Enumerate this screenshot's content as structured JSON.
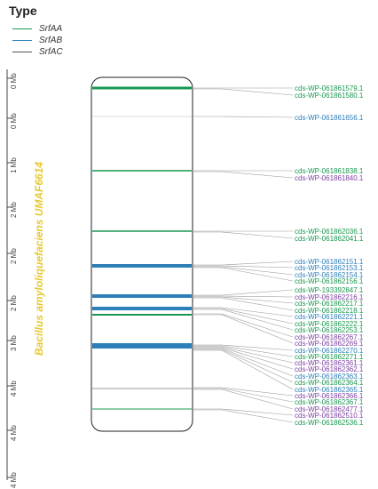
{
  "legend": {
    "title": "Type",
    "items": [
      {
        "label": "SrfAA",
        "color": "#1a9850"
      },
      {
        "label": "SrfAB",
        "color": "#2c7fb8"
      },
      {
        "label": "SrfAC",
        "color": "#555555"
      }
    ]
  },
  "organism": "Bacillus amyloliquefaciens UMAF6614",
  "axis_ticks": [
    "0 Mb",
    "0 Mb",
    "1 Mb",
    "2 Mb",
    "2 Mb",
    "2 Mb",
    "3 Mb",
    "4 Mb",
    "4 Mb",
    "4 Mb"
  ],
  "colors": {
    "SrfAA": "#1a9850",
    "SrfAB": "#2c7fb8",
    "SrfAC": "#555555",
    "purple": "#7b3fa0",
    "organism": "#e6c832"
  },
  "genes": [
    {
      "label": "cds-WP-061861579.1",
      "color": "#1a9850"
    },
    {
      "label": "cds-WP-061861580.1",
      "color": "#1a9850"
    },
    {
      "label": "cds-WP-061861656.1",
      "color": "#2c7fb8"
    },
    {
      "label": "cds-WP-061861838.1",
      "color": "#1a9850"
    },
    {
      "label": "cds-WP-061861840.1",
      "color": "#7b3fa0"
    },
    {
      "label": "cds-WP-061862036.1",
      "color": "#1a9850"
    },
    {
      "label": "cds-WP-061862041.1",
      "color": "#1a9850"
    },
    {
      "label": "cds-WP-061862151.1",
      "color": "#2c7fb8"
    },
    {
      "label": "cds-WP-061862153.1",
      "color": "#2c7fb8"
    },
    {
      "label": "cds-WP-061862154.1",
      "color": "#2c7fb8"
    },
    {
      "label": "cds-WP-061862156.1",
      "color": "#1a9850"
    },
    {
      "label": "cds-WP-193392847.1",
      "color": "#1a9850"
    },
    {
      "label": "cds-WP-061862216.1",
      "color": "#7b3fa0"
    },
    {
      "label": "cds-WP-061862217.1",
      "color": "#1a9850"
    },
    {
      "label": "cds-WP-061862218.1",
      "color": "#1a9850"
    },
    {
      "label": "cds-WP-061862221.1",
      "color": "#2c7fb8"
    },
    {
      "label": "cds-WP-061862222.1",
      "color": "#1a9850"
    },
    {
      "label": "cds-WP-061862253.1",
      "color": "#1a9850"
    },
    {
      "label": "cds-WP-061862267.1",
      "color": "#7b3fa0"
    },
    {
      "label": "cds-WP-061862269.1",
      "color": "#7b3fa0"
    },
    {
      "label": "cds-WP-061862270.1",
      "color": "#2c7fb8"
    },
    {
      "label": "cds-WP-061862271.1",
      "color": "#1a9850"
    },
    {
      "label": "cds-WP-061862361.1",
      "color": "#7b3fa0"
    },
    {
      "label": "cds-WP-061862362.1",
      "color": "#7b3fa0"
    },
    {
      "label": "cds-WP-061862363.1",
      "color": "#2c7fb8"
    },
    {
      "label": "cds-WP-061862364.1",
      "color": "#1a9850"
    },
    {
      "label": "cds-WP-061862365.1",
      "color": "#2c7fb8"
    },
    {
      "label": "cds-WP-061862366.1",
      "color": "#7b3fa0"
    },
    {
      "label": "cds-WP-061862367.1",
      "color": "#1a9850"
    },
    {
      "label": "cds-WP-061862477.1",
      "color": "#7b3fa0"
    },
    {
      "label": "cds-WP-061862510.1",
      "color": "#7b3fa0"
    },
    {
      "label": "cds-WP-061862536.1",
      "color": "#1a9850"
    }
  ]
}
